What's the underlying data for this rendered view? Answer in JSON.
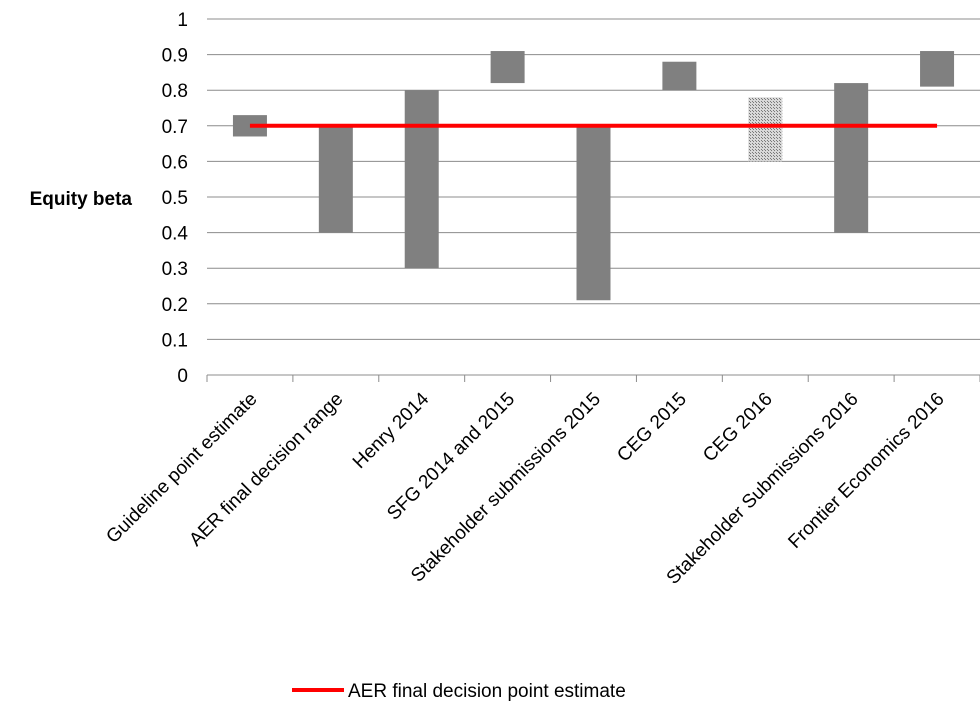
{
  "chart_data": {
    "type": "bar",
    "subtype": "floating-range",
    "ylabel": "Equity beta",
    "ylim": [
      0,
      1
    ],
    "yticks": [
      "0",
      "0.1",
      "0.2",
      "0.3",
      "0.4",
      "0.5",
      "0.6",
      "0.7",
      "0.8",
      "0.9",
      "1"
    ],
    "grid": true,
    "categories": [
      "Guideline point estimate",
      "AER final decision range",
      "Henry 2014",
      "SFG 2014 and 2015",
      "Stakeholder submissions 2015",
      "CEG 2015",
      "CEG 2016",
      "Stakeholder Submissions 2016",
      "Frontier Economics 2016"
    ],
    "ranges": [
      {
        "low": 0.67,
        "high": 0.73,
        "style": "solid"
      },
      {
        "low": 0.4,
        "high": 0.7,
        "style": "solid"
      },
      {
        "low": 0.3,
        "high": 0.8,
        "style": "solid"
      },
      {
        "low": 0.82,
        "high": 0.91,
        "style": "solid"
      },
      {
        "low": 0.21,
        "high": 0.7,
        "style": "solid"
      },
      {
        "low": 0.8,
        "high": 0.88,
        "style": "solid"
      },
      {
        "low": 0.6,
        "high": 0.78,
        "style": "hatched"
      },
      {
        "low": 0.4,
        "high": 0.82,
        "style": "solid"
      },
      {
        "low": 0.81,
        "high": 0.91,
        "style": "solid"
      }
    ],
    "reference_line": {
      "name": "AER final decision point estimate",
      "value": 0.7,
      "color": "#ff0000"
    },
    "bar_color": "#808080",
    "legend_position": "bottom"
  }
}
